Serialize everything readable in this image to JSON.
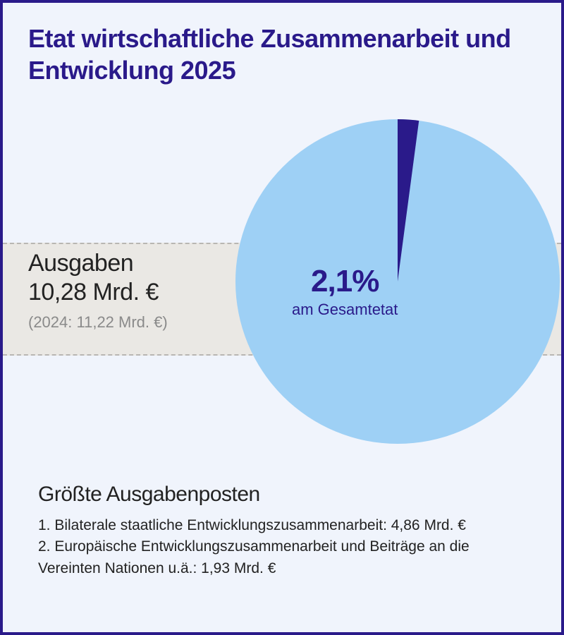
{
  "title": "Etat wirtschaftliche Zusammenarbeit und Entwicklung 2025",
  "band": {
    "background_color": "#eae8e4",
    "border_color": "#b8b6b2"
  },
  "spending": {
    "label": "Ausgaben",
    "value": "10,28 Mrd. €",
    "previous": "(2024: 11,22 Mrd. €)"
  },
  "pie": {
    "type": "pie",
    "slice_percent": 2.1,
    "slice_color": "#2a1a8a",
    "rest_color": "#9ed0f5",
    "background_color": "#f0f4fc",
    "center_label_percent": "2,1%",
    "center_label_sub": "am Gesamtetat",
    "label_color": "#2a1a8a",
    "pct_fontsize": 44,
    "sub_fontsize": 22
  },
  "posts": {
    "title": "Größte Ausgabenposten",
    "items": [
      "1. Bilaterale staatliche Entwicklungszusammenarbeit: 4,86 Mrd. €",
      "2. Europäische Entwicklungszusammenarbeit und Beiträge an die Vereinten Nationen u.ä.: 1,93 Mrd. €"
    ]
  },
  "frame": {
    "border_color": "#2a1a8a",
    "background_color": "#f0f4fc"
  },
  "typography": {
    "title_fontsize": 36,
    "title_color": "#2a1a8a",
    "body_color": "#222222",
    "muted_color": "#8a8a8a"
  }
}
